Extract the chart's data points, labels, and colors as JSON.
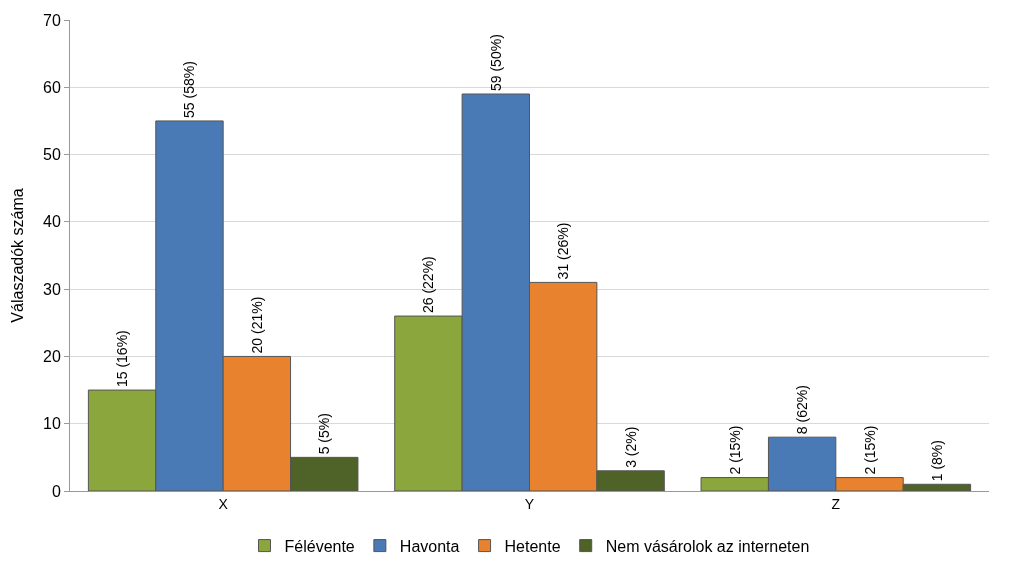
{
  "chart_data": {
    "type": "bar",
    "ylabel": "Válaszadók száma",
    "categories": [
      "X",
      "Y",
      "Z"
    ],
    "series": [
      {
        "name": "Félévente",
        "color": "#8aa63c",
        "values": [
          15,
          26,
          2
        ],
        "value_labels": [
          "15 (16%)",
          "26 (22%)",
          "2 (15%)"
        ]
      },
      {
        "name": "Havonta",
        "color": "#4a7ab5",
        "values": [
          55,
          59,
          8
        ],
        "value_labels": [
          "55 (58%)",
          "59 (50%)",
          "8 (62%)"
        ]
      },
      {
        "name": "Hetente",
        "color": "#e8822e",
        "values": [
          20,
          31,
          2
        ],
        "value_labels": [
          "20 (21%)",
          "31 (26%)",
          "2 (15%)"
        ]
      },
      {
        "name": "Nem vásárolok az interneten",
        "color": "#4f6228",
        "values": [
          5,
          3,
          1
        ],
        "value_labels": [
          "5 (5%)",
          "3 (2%)",
          "1 (8%)"
        ]
      }
    ],
    "ylim": [
      0,
      70
    ],
    "yticks": [
      0,
      10,
      20,
      30,
      40,
      50,
      60,
      70
    ],
    "grid": "y",
    "legend": "bottom"
  }
}
